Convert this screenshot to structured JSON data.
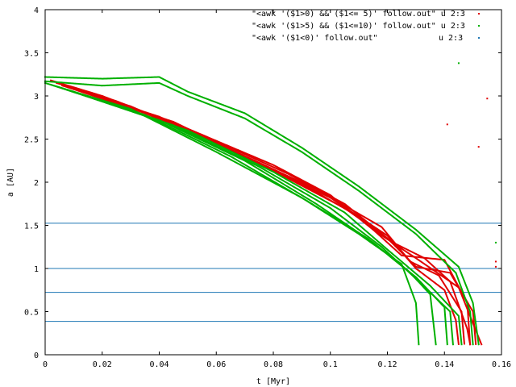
{
  "chart_data": {
    "type": "scatter",
    "xlabel": "t [Myr]",
    "ylabel": "a [AU]",
    "xlim": [
      0,
      0.16
    ],
    "ylim": [
      0,
      4
    ],
    "x_ticks": [
      "0",
      "0.02",
      "0.04",
      "0.06",
      "0.08",
      "0.1",
      "0.12",
      "0.14",
      "0.16"
    ],
    "y_ticks": [
      "0",
      "0.5",
      "1",
      "1.5",
      "2",
      "2.5",
      "3",
      "3.5",
      "4"
    ],
    "legend_position": "top-right",
    "hlines": [
      0.387,
      0.723,
      1.0,
      1.524
    ],
    "hline_color": "#1f77b4",
    "series": [
      {
        "name": "\"<awk '($1>0) && ($1<= 5)' follow.out\" u 2:3",
        "color": "#e00000",
        "tracks": [
          [
            [
              0.002,
              3.18
            ],
            [
              0.02,
              3.0
            ],
            [
              0.05,
              2.62
            ],
            [
              0.08,
              2.2
            ],
            [
              0.1,
              1.85
            ],
            [
              0.115,
              1.45
            ],
            [
              0.13,
              1.12
            ],
            [
              0.145,
              0.78
            ],
            [
              0.152,
              0.2
            ],
            [
              0.153,
              0.12
            ]
          ],
          [
            [
              0.004,
              3.15
            ],
            [
              0.025,
              2.94
            ],
            [
              0.055,
              2.55
            ],
            [
              0.085,
              2.1
            ],
            [
              0.105,
              1.75
            ],
            [
              0.12,
              1.35
            ],
            [
              0.13,
              1.02
            ],
            [
              0.142,
              0.95
            ],
            [
              0.15,
              0.5
            ],
            [
              0.151,
              0.12
            ]
          ],
          [
            [
              0.006,
              3.12
            ],
            [
              0.03,
              2.88
            ],
            [
              0.06,
              2.45
            ],
            [
              0.09,
              1.98
            ],
            [
              0.11,
              1.6
            ],
            [
              0.125,
              1.15
            ],
            [
              0.14,
              1.1
            ],
            [
              0.148,
              0.6
            ],
            [
              0.149,
              0.12
            ]
          ],
          [
            [
              0.008,
              3.1
            ],
            [
              0.035,
              2.8
            ],
            [
              0.065,
              2.38
            ],
            [
              0.095,
              1.92
            ],
            [
              0.118,
              1.48
            ],
            [
              0.128,
              1.08
            ],
            [
              0.138,
              0.92
            ],
            [
              0.146,
              0.5
            ],
            [
              0.147,
              0.12
            ]
          ],
          [
            [
              0.01,
              3.08
            ],
            [
              0.04,
              2.76
            ],
            [
              0.07,
              2.3
            ],
            [
              0.1,
              1.82
            ],
            [
              0.12,
              1.38
            ],
            [
              0.13,
              1.0
            ],
            [
              0.14,
              0.75
            ],
            [
              0.144,
              0.4
            ],
            [
              0.145,
              0.12
            ]
          ],
          [
            [
              0.012,
              3.06
            ],
            [
              0.045,
              2.7
            ],
            [
              0.075,
              2.22
            ],
            [
              0.105,
              1.7
            ],
            [
              0.122,
              1.3
            ],
            [
              0.133,
              1.12
            ],
            [
              0.142,
              0.85
            ],
            [
              0.148,
              0.3
            ],
            [
              0.149,
              0.12
            ]
          ]
        ],
        "outliers": [
          [
            0.141,
            2.67
          ],
          [
            0.152,
            2.41
          ],
          [
            0.155,
            2.97
          ],
          [
            0.158,
            1.08
          ],
          [
            0.158,
            1.02
          ]
        ]
      },
      {
        "name": "\"<awk '($1>5) && ($1<=10)' follow.out\" u 2:3",
        "color": "#00b000",
        "tracks": [
          [
            [
              0.0,
              3.22
            ],
            [
              0.02,
              3.2
            ],
            [
              0.04,
              3.22
            ],
            [
              0.05,
              3.05
            ],
            [
              0.07,
              2.8
            ],
            [
              0.09,
              2.4
            ],
            [
              0.11,
              1.95
            ],
            [
              0.13,
              1.45
            ],
            [
              0.145,
              1.02
            ],
            [
              0.15,
              0.6
            ],
            [
              0.152,
              0.12
            ]
          ],
          [
            [
              0.0,
              3.17
            ],
            [
              0.02,
              3.12
            ],
            [
              0.04,
              3.15
            ],
            [
              0.05,
              3.0
            ],
            [
              0.07,
              2.74
            ],
            [
              0.09,
              2.35
            ],
            [
              0.11,
              1.9
            ],
            [
              0.13,
              1.4
            ],
            [
              0.144,
              0.95
            ],
            [
              0.149,
              0.5
            ],
            [
              0.15,
              0.12
            ]
          ],
          [
            [
              0.0,
              3.15
            ],
            [
              0.03,
              2.85
            ],
            [
              0.06,
              2.35
            ],
            [
              0.09,
              1.82
            ],
            [
              0.11,
              1.4
            ],
            [
              0.125,
              1.05
            ],
            [
              0.13,
              0.6
            ],
            [
              0.131,
              0.12
            ]
          ],
          [
            [
              0.002,
              3.13
            ],
            [
              0.035,
              2.78
            ],
            [
              0.065,
              2.3
            ],
            [
              0.092,
              1.78
            ],
            [
              0.113,
              1.35
            ],
            [
              0.128,
              0.95
            ],
            [
              0.135,
              0.7
            ],
            [
              0.137,
              0.12
            ]
          ],
          [
            [
              0.004,
              3.11
            ],
            [
              0.04,
              2.72
            ],
            [
              0.07,
              2.25
            ],
            [
              0.095,
              1.75
            ],
            [
              0.115,
              1.3
            ],
            [
              0.13,
              0.9
            ],
            [
              0.14,
              0.55
            ],
            [
              0.141,
              0.12
            ]
          ],
          [
            [
              0.006,
              3.09
            ],
            [
              0.045,
              2.66
            ],
            [
              0.075,
              2.18
            ],
            [
              0.1,
              1.7
            ],
            [
              0.118,
              1.25
            ],
            [
              0.132,
              0.82
            ],
            [
              0.142,
              0.5
            ],
            [
              0.143,
              0.12
            ]
          ],
          [
            [
              0.008,
              3.07
            ],
            [
              0.05,
              2.6
            ],
            [
              0.08,
              2.12
            ],
            [
              0.105,
              1.65
            ],
            [
              0.12,
              1.22
            ],
            [
              0.135,
              0.8
            ],
            [
              0.145,
              0.45
            ],
            [
              0.146,
              0.12
            ]
          ]
        ],
        "outliers": [
          [
            0.145,
            3.38
          ],
          [
            0.158,
            1.3
          ]
        ]
      },
      {
        "name": "\"<awk '($1<0)' follow.out\"",
        "suffix": "u 2:3",
        "color": "#1f77b4",
        "tracks": [],
        "outliers": []
      }
    ]
  }
}
